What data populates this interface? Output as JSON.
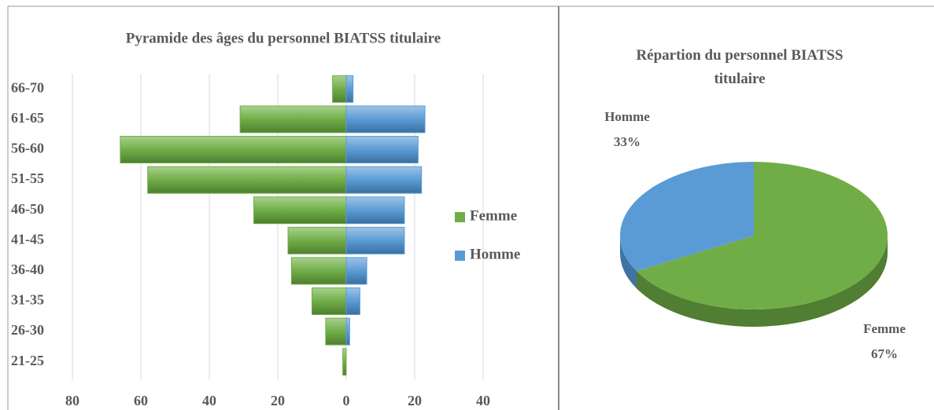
{
  "chart_data": [
    {
      "type": "hbar",
      "title": "Pyramide des âges du personnel BIATSS titulaire",
      "categories": [
        "66-70",
        "61-65",
        "56-60",
        "51-55",
        "46-50",
        "41-45",
        "36-40",
        "31-35",
        "26-30",
        "21-25"
      ],
      "series": [
        {
          "name": "Femme",
          "color": "#70ad47",
          "values": [
            -4,
            -31,
            -66,
            -58,
            -27,
            -17,
            -16,
            -10,
            -6,
            -1
          ]
        },
        {
          "name": "Homme",
          "color": "#5b9bd5",
          "values": [
            2,
            23,
            21,
            22,
            17,
            17,
            6,
            4,
            1,
            0
          ]
        }
      ],
      "xlim": [
        -80,
        40
      ],
      "xticks": [
        {
          "value": -80,
          "label": "80"
        },
        {
          "value": -60,
          "label": "60"
        },
        {
          "value": -40,
          "label": "40"
        },
        {
          "value": -20,
          "label": "20"
        },
        0,
        20,
        40
      ],
      "grid": true,
      "legend": "right"
    },
    {
      "type": "pie",
      "title": "Répartion du personnel BIATSS titulaire",
      "categories": [
        "Femme",
        "Homme"
      ],
      "values": [
        67,
        33
      ],
      "value_labels": [
        "67%",
        "33%"
      ],
      "colors": [
        "#70ad47",
        "#5b9bd5"
      ]
    }
  ]
}
